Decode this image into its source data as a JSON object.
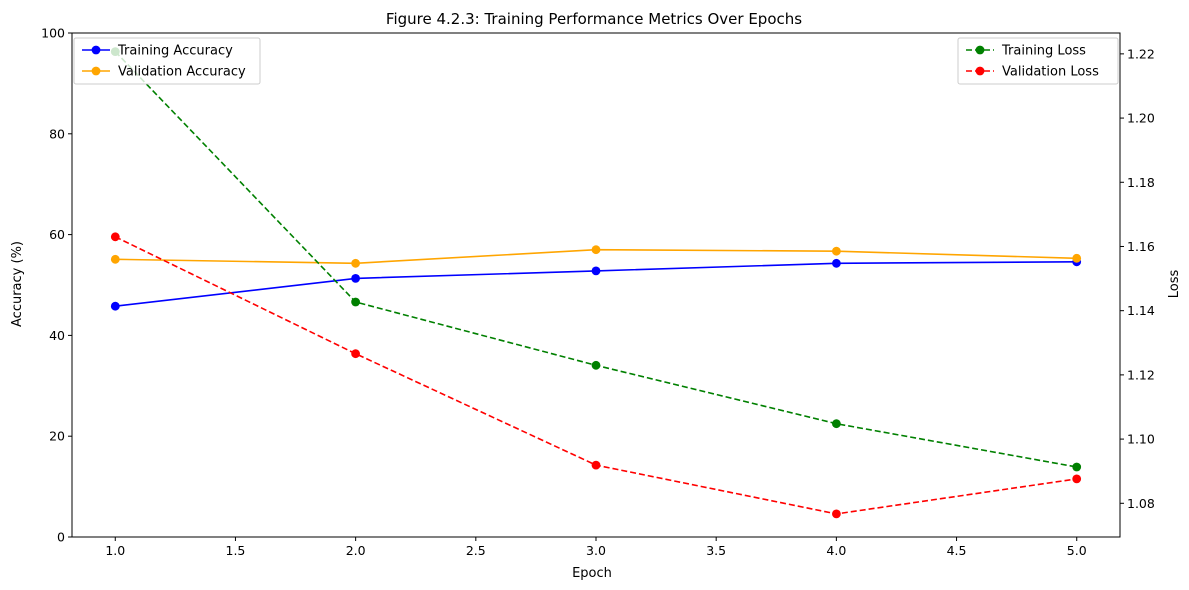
{
  "chart_data": {
    "type": "line",
    "title": "Figure 4.2.3: Training Performance Metrics Over Epochs",
    "xlabel": "Epoch",
    "ylabel": "Accuracy (%)",
    "y2label": "Loss",
    "xlim": [
      0.82,
      5.18
    ],
    "ylim": [
      0,
      100
    ],
    "y2lim": [
      1.0695,
      1.2265
    ],
    "x_ticks": [
      1.0,
      1.5,
      2.0,
      2.5,
      3.0,
      3.5,
      4.0,
      4.5,
      5.0
    ],
    "x_tick_labels": [
      "1.0",
      "1.5",
      "2.0",
      "2.5",
      "3.0",
      "3.5",
      "4.0",
      "4.5",
      "5.0"
    ],
    "y_ticks": [
      0,
      20,
      40,
      60,
      80,
      100
    ],
    "y_tick_labels": [
      "0",
      "20",
      "40",
      "60",
      "80",
      "100"
    ],
    "y2_ticks": [
      1.08,
      1.1,
      1.12,
      1.14,
      1.16,
      1.18,
      1.2,
      1.22
    ],
    "y2_tick_labels": [
      "1.08",
      "1.10",
      "1.12",
      "1.14",
      "1.16",
      "1.18",
      "1.20",
      "1.22"
    ],
    "x": [
      1,
      2,
      3,
      4,
      5
    ],
    "grid": false,
    "series": [
      {
        "name": "Training Accuracy",
        "axis": "left",
        "color": "#0000ff",
        "dashed": false,
        "values": [
          45.8,
          51.3,
          52.8,
          54.3,
          54.6
        ]
      },
      {
        "name": "Validation Accuracy",
        "axis": "left",
        "color": "#ffa500",
        "dashed": false,
        "values": [
          55.1,
          54.3,
          57.0,
          56.7,
          55.3
        ]
      },
      {
        "name": "Training Loss",
        "axis": "right",
        "color": "#008000",
        "dashed": true,
        "values": [
          1.2207,
          1.1427,
          1.123,
          1.1048,
          1.0913
        ]
      },
      {
        "name": "Validation Loss",
        "axis": "right",
        "color": "#ff0000",
        "dashed": true,
        "values": [
          1.163,
          1.1266,
          1.0919,
          1.0767,
          1.0876
        ]
      }
    ],
    "legends": [
      {
        "placement": "upper-left",
        "series": [
          "Training Accuracy",
          "Validation Accuracy"
        ]
      },
      {
        "placement": "upper-right",
        "series": [
          "Training Loss",
          "Validation Loss"
        ]
      }
    ]
  }
}
